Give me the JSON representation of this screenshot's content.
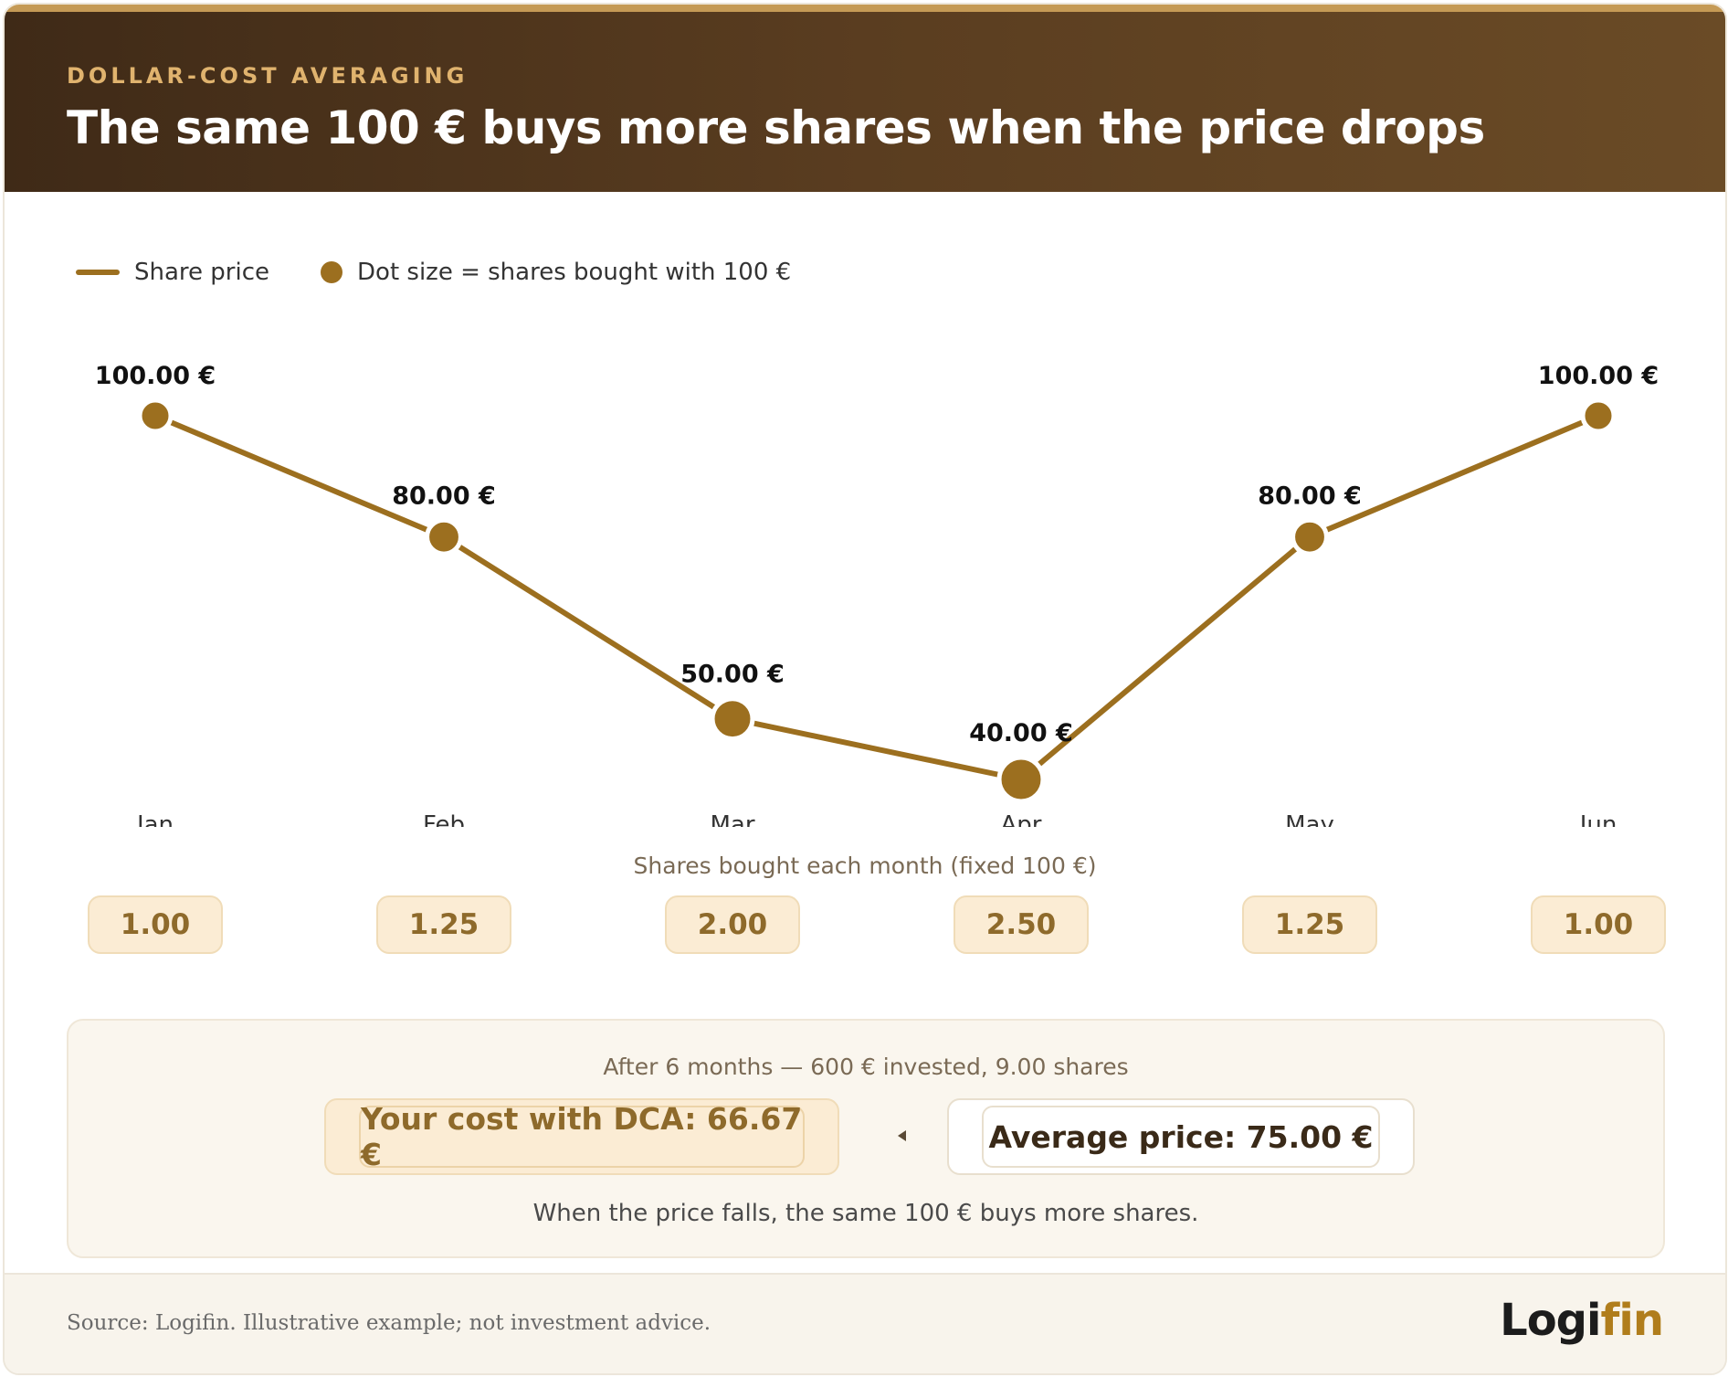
{
  "header": {
    "eyebrow": "DOLLAR-COST AVERAGING",
    "title": "The same 100 € buys more shares when the price drops"
  },
  "legend": {
    "line_label": "Share price",
    "dot_label": "Dot size = shares bought with 100 €"
  },
  "chart_data": {
    "type": "line",
    "categories": [
      "Jan",
      "Feb",
      "Mar",
      "Apr",
      "May",
      "Jun"
    ],
    "series": [
      {
        "name": "Share price",
        "values": [
          100,
          80,
          50,
          40,
          80,
          100
        ]
      }
    ],
    "price_labels": [
      "100.00 €",
      "80.00 €",
      "50.00 €",
      "40.00 €",
      "80.00 €",
      "100.00 €"
    ],
    "shares_bought": [
      1.0,
      1.25,
      2.0,
      2.5,
      1.25,
      1.0
    ],
    "shares_labels": [
      "1.00",
      "1.25",
      "2.00",
      "2.50",
      "1.25",
      "1.00"
    ],
    "shares_caption": "Shares bought each month (fixed 100 €)",
    "ylim": [
      40,
      100
    ],
    "grid": false,
    "legend_position": "top-left",
    "colors": {
      "line": "#9c6f1f",
      "dot": "#9c6f1f"
    }
  },
  "summary": {
    "intro": "After 6 months — 600 € invested, 9.00 shares",
    "dca_cost": "Your cost with DCA: 66.67 €",
    "average_price": "Average price: 75.00 €",
    "note": "When the price falls, the same 100 € buys more shares."
  },
  "footer": {
    "source": "Source: Logifin. Illustrative example; not investment advice.",
    "logo_part1": "Logi",
    "logo_part2": "fin"
  },
  "colors": {
    "accent": "#9c6f1f",
    "header_bg": "#4a321b",
    "eyebrow": "#e0b36e"
  }
}
